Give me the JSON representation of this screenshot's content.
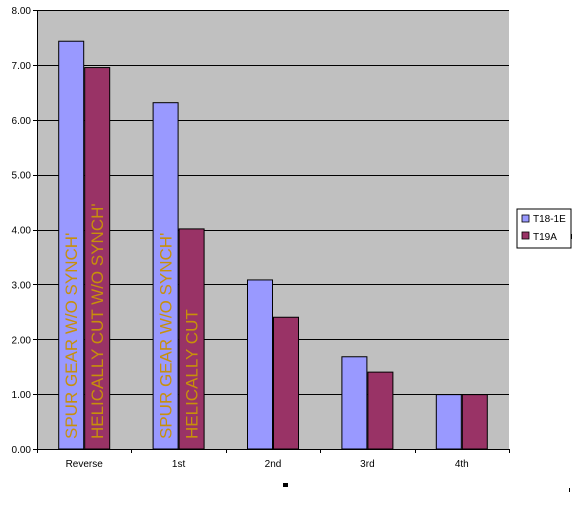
{
  "chart_data": {
    "type": "bar",
    "categories": [
      "Reverse",
      "1st",
      "2nd",
      "3rd",
      "4th"
    ],
    "series": [
      {
        "name": "T18-1E",
        "values": [
          7.44,
          6.32,
          3.09,
          1.69,
          1.0
        ],
        "color": "#9999ff"
      },
      {
        "name": "T19A",
        "values": [
          6.96,
          4.02,
          2.41,
          1.41,
          1.0
        ],
        "color": "#993366"
      }
    ],
    "y_ticks": [
      "0.00",
      "1.00",
      "2.00",
      "3.00",
      "4.00",
      "5.00",
      "6.00",
      "7.00",
      "8.00"
    ],
    "ylim": [
      0,
      8
    ],
    "grid": true,
    "plot_background": "#c0c0c0",
    "gridline_color": "#000000",
    "legend_position": "right",
    "annotation_color": "#c8900a",
    "annotations": [
      {
        "text": "SPUR GEAR W/O SYNCH'",
        "category": "Reverse",
        "series": "T18-1E"
      },
      {
        "text": "HELICALLY CUT W/O SYNCH'",
        "category": "Reverse",
        "series": "T19A"
      },
      {
        "text": "SPUR GEAR W/O SYNCH'",
        "category": "1st",
        "series": "T18-1E"
      },
      {
        "text": "HELICALLY CUT",
        "category": "1st",
        "series": "T19A"
      }
    ]
  }
}
